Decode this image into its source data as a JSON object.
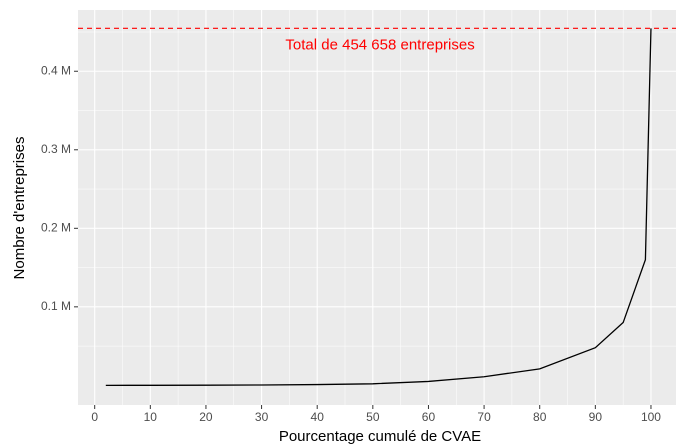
{
  "chart_data": {
    "type": "line",
    "x_label": "Pourcentage cumulé de CVAE",
    "y_label": "Nombre d'entreprises",
    "x": [
      2,
      10,
      20,
      30,
      40,
      50,
      60,
      70,
      80,
      90,
      95,
      99,
      100
    ],
    "series": [
      {
        "name": "entreprises",
        "color": "#000000",
        "values": [
          0,
          100,
          200,
          500,
          1000,
          2000,
          5000,
          11000,
          21000,
          48000,
          80000,
          160000,
          454658
        ]
      }
    ],
    "xlim": [
      -3,
      104.5
    ],
    "xticks": [
      0,
      10,
      20,
      30,
      40,
      50,
      60,
      70,
      80,
      90,
      100
    ],
    "ylim": [
      -25000,
      478000
    ],
    "yticks": [
      {
        "value": 100000,
        "label": "0.1 M"
      },
      {
        "value": 200000,
        "label": "0.2 M"
      },
      {
        "value": 300000,
        "label": "0.3 M"
      },
      {
        "value": 400000,
        "label": "0.4 M"
      }
    ],
    "grid": true,
    "reference_line": {
      "value": 454658,
      "color": "#ff0000"
    },
    "annotation": {
      "text": "Total de 454 658 entreprises",
      "x": 51.3,
      "y": 433000,
      "color": "#ff0000"
    }
  }
}
